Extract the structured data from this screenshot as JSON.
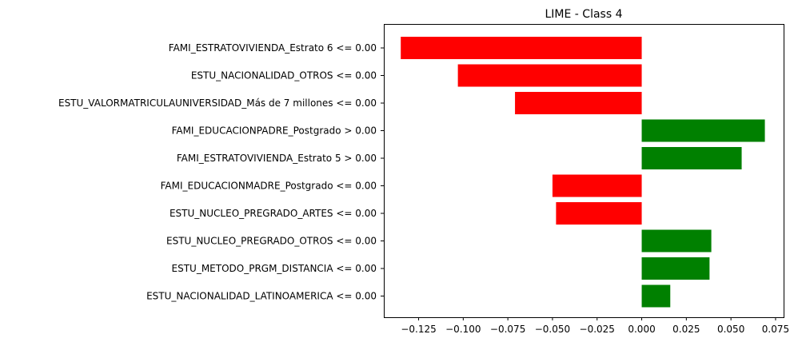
{
  "chart_data": {
    "type": "bar",
    "orientation": "horizontal",
    "title": "LIME - Class 4",
    "xlabel": "",
    "ylabel": "",
    "xlim": [
      -0.1445,
      0.0795
    ],
    "xticks": [
      -0.125,
      -0.1,
      -0.075,
      -0.05,
      -0.025,
      0.0,
      0.025,
      0.05,
      0.075
    ],
    "xtick_labels": [
      "−0.125",
      "−0.100",
      "−0.075",
      "−0.050",
      "−0.025",
      "0.000",
      "0.025",
      "0.050",
      "0.075"
    ],
    "grid": false,
    "positive_color": "#008000",
    "negative_color": "#ff0000",
    "categories": [
      "FAMI_ESTRATOVIVIENDA_Estrato 6 <= 0.00",
      "ESTU_NACIONALIDAD_OTROS <= 0.00",
      "ESTU_VALORMATRICULAUNIVERSIDAD_Más de 7 millones <= 0.00",
      "FAMI_EDUCACIONPADRE_Postgrado > 0.00",
      "FAMI_ESTRATOVIVIENDA_Estrato 5 > 0.00",
      "FAMI_EDUCACIONMADRE_Postgrado <= 0.00",
      "ESTU_NUCLEO_PREGRADO_ARTES <= 0.00",
      "ESTU_NUCLEO_PREGRADO_OTROS <= 0.00",
      "ESTU_METODO_PRGM_DISTANCIA <= 0.00",
      "ESTU_NACIONALIDAD_LATINOAMERICA <= 0.00"
    ],
    "values": [
      -0.135,
      -0.103,
      -0.071,
      0.069,
      0.056,
      -0.05,
      -0.048,
      0.039,
      0.038,
      0.016
    ]
  }
}
